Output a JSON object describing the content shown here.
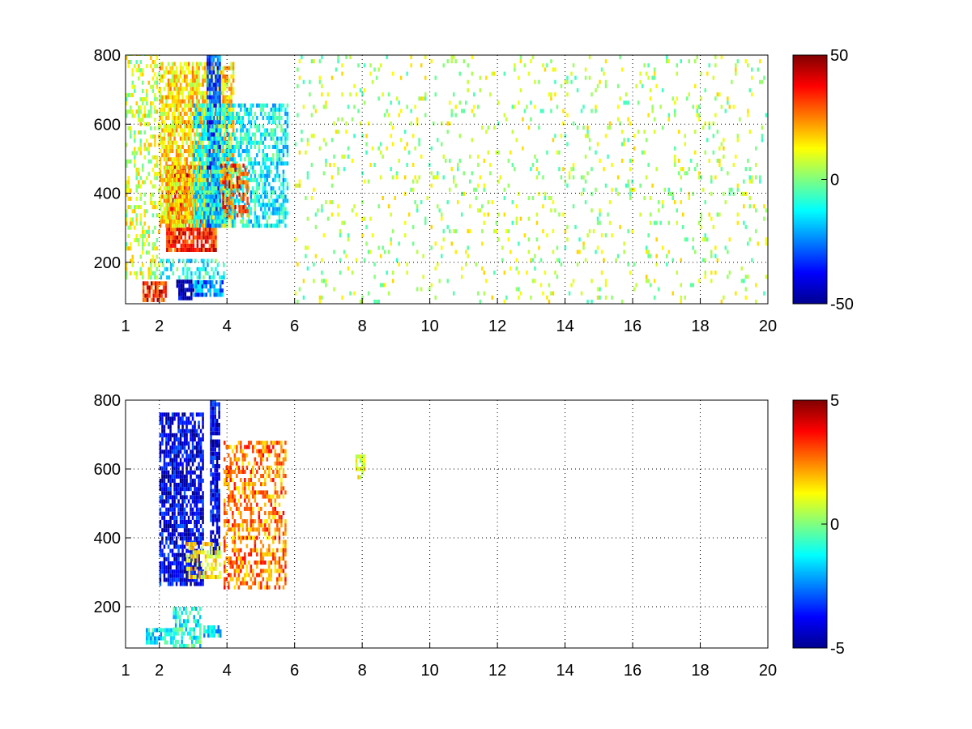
{
  "chart_data": [
    {
      "type": "heatmap",
      "title": "",
      "xlabel": "",
      "ylabel": "",
      "xlim": [
        1,
        20
      ],
      "ylim": [
        80,
        800
      ],
      "xticks": [
        1,
        2,
        4,
        6,
        8,
        10,
        12,
        14,
        16,
        18,
        20
      ],
      "xtick_labels": [
        "1",
        "2",
        "4",
        "6",
        "8",
        "10",
        "12",
        "14",
        "16",
        "18",
        "20"
      ],
      "yticks": [
        200,
        400,
        600,
        800
      ],
      "ytick_labels": [
        "200",
        "400",
        "600",
        "800"
      ],
      "grid": "dotted",
      "colormap": "jet",
      "clim": [
        -50,
        50
      ],
      "colorbar": {
        "ticks": [
          -50,
          0,
          50
        ],
        "tick_labels": [
          "-50",
          "0",
          "50"
        ]
      },
      "features": [
        {
          "x_range": [
            2.2,
            3.7
          ],
          "y_range": [
            230,
            480
          ],
          "value": 35,
          "density": 0.85
        },
        {
          "x_range": [
            2.0,
            4.2
          ],
          "y_range": [
            300,
            780
          ],
          "value": 15,
          "density": 0.75
        },
        {
          "x_range": [
            3.4,
            3.8
          ],
          "y_range": [
            300,
            800
          ],
          "value": -30,
          "density": 0.85
        },
        {
          "x_range": [
            3.0,
            5.8
          ],
          "y_range": [
            300,
            650
          ],
          "value": -12,
          "density": 0.6
        },
        {
          "x_range": [
            3.8,
            4.6
          ],
          "y_range": [
            330,
            480
          ],
          "value": 30,
          "density": 0.55
        },
        {
          "x_range": [
            1.5,
            2.2
          ],
          "y_range": [
            85,
            140
          ],
          "value": 35,
          "density": 0.8
        },
        {
          "x_range": [
            2.5,
            3.0
          ],
          "y_range": [
            90,
            140
          ],
          "value": -45,
          "density": 0.85
        },
        {
          "x_range": [
            3.0,
            3.9
          ],
          "y_range": [
            100,
            140
          ],
          "value": -25,
          "density": 0.8
        },
        {
          "x_range": [
            1.9,
            3.9
          ],
          "y_range": [
            150,
            200
          ],
          "value": -10,
          "density": 0.35
        },
        {
          "x_range": [
            6,
            20
          ],
          "y_range": [
            80,
            800
          ],
          "value": 5,
          "density": 0.08
        },
        {
          "x_range": [
            1,
            2
          ],
          "y_range": [
            150,
            800
          ],
          "value": 8,
          "density": 0.35
        }
      ]
    },
    {
      "type": "heatmap",
      "title": "",
      "xlabel": "",
      "ylabel": "",
      "xlim": [
        1,
        20
      ],
      "ylim": [
        80,
        800
      ],
      "xticks": [
        1,
        2,
        4,
        6,
        8,
        10,
        12,
        14,
        16,
        18,
        20
      ],
      "xtick_labels": [
        "1",
        "2",
        "4",
        "6",
        "8",
        "10",
        "12",
        "14",
        "16",
        "18",
        "20"
      ],
      "yticks": [
        200,
        400,
        600,
        800
      ],
      "ytick_labels": [
        "200",
        "400",
        "600",
        "800"
      ],
      "grid": "dotted",
      "colormap": "jet",
      "clim": [
        -5,
        5
      ],
      "colorbar": {
        "ticks": [
          -5,
          0,
          5
        ],
        "tick_labels": [
          "-5",
          "0",
          "5"
        ]
      },
      "features": [
        {
          "x_range": [
            2.0,
            3.3
          ],
          "y_range": [
            260,
            760
          ],
          "value": -4,
          "density": 0.75
        },
        {
          "x_range": [
            3.5,
            3.8
          ],
          "y_range": [
            350,
            800
          ],
          "value": -4,
          "density": 0.8
        },
        {
          "x_range": [
            3.9,
            5.7
          ],
          "y_range": [
            250,
            680
          ],
          "value": 2.5,
          "density": 0.5
        },
        {
          "x_range": [
            2.8,
            3.8
          ],
          "y_range": [
            280,
            380
          ],
          "value": 1.5,
          "density": 0.55
        },
        {
          "x_range": [
            1.6,
            2.4
          ],
          "y_range": [
            90,
            130
          ],
          "value": -1.5,
          "density": 0.8
        },
        {
          "x_range": [
            2.4,
            3.2
          ],
          "y_range": [
            80,
            190
          ],
          "value": -1,
          "density": 0.6
        },
        {
          "x_range": [
            3.3,
            3.8
          ],
          "y_range": [
            110,
            140
          ],
          "value": -1.5,
          "density": 0.85
        },
        {
          "x_range": [
            7.8,
            8.1
          ],
          "y_range": [
            570,
            640
          ],
          "value": 1,
          "density": 0.6
        }
      ]
    }
  ]
}
